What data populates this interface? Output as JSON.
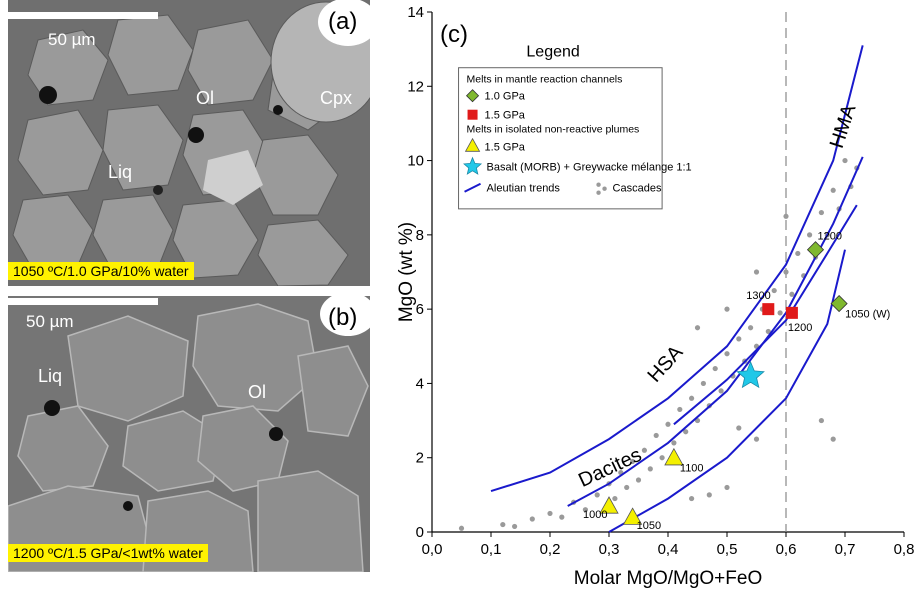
{
  "panel_a": {
    "letter": "(a)",
    "scale_label": "50 µm",
    "minerals": [
      "Ol",
      "Cpx",
      "Liq"
    ],
    "caption": "1050 ºC/1.0 GPa/10% water"
  },
  "panel_b": {
    "letter": "(b)",
    "scale_label": "50 µm",
    "minerals": [
      "Liq",
      "Ol"
    ],
    "caption": "1200 ºC/1.5 GPa/<1wt% water"
  },
  "colors": {
    "trend": "#1a1acc",
    "green": "#7fb82e",
    "red": "#e01a1a",
    "yellow": "#f4f000",
    "cyan": "#20c8e8",
    "gray": "#9a9a9a"
  },
  "chart_data": {
    "type": "scatter",
    "panel_label": "(c)",
    "xlabel": "Molar MgO/MgO+FeO",
    "ylabel": "MgO (wt %)",
    "xlim": [
      0.0,
      0.8
    ],
    "ylim": [
      0,
      14
    ],
    "xticks": [
      "0,0",
      "0,1",
      "0,2",
      "0,3",
      "0,4",
      "0,5",
      "0,6",
      "0,7",
      "0,8"
    ],
    "yticks": [
      "0",
      "2",
      "4",
      "6",
      "8",
      "10",
      "12",
      "14"
    ],
    "dashed_vline_x": 0.6,
    "field_labels": [
      "HMA",
      "HSA",
      "Dacites"
    ],
    "legend": {
      "title": "Legend",
      "group1": "Melts in mantle reaction channels",
      "item_green": "1.0 GPa",
      "item_red": "1.5 GPa",
      "group2": "Melts in isolated non-reactive plumes",
      "item_yellow": "1.5 GPa",
      "item_star": "Basalt (MORB) + Greywacke mélange 1:1",
      "item_line": "Aleutian trends",
      "item_gray": "Cascades"
    },
    "series": [
      {
        "name": "1.0 GPa",
        "marker": "diamond",
        "points": [
          [
            0.65,
            7.6,
            "1200"
          ],
          [
            0.69,
            6.15,
            "1050 (W)"
          ]
        ]
      },
      {
        "name": "1.5 GPa",
        "marker": "square",
        "points": [
          [
            0.57,
            6.0,
            "1300"
          ],
          [
            0.61,
            5.9,
            "1200"
          ]
        ]
      },
      {
        "name": "1.5 GPa",
        "marker": "triangle",
        "points": [
          [
            0.3,
            0.7,
            "1000"
          ],
          [
            0.34,
            0.4,
            "1050"
          ],
          [
            0.41,
            2.0,
            "1100"
          ]
        ]
      },
      {
        "name": "Basalt (MORB) + Greywacke mélange 1:1",
        "marker": "star",
        "points": [
          [
            0.54,
            4.2,
            ""
          ]
        ]
      }
    ],
    "aleutian_trends": [
      [
        [
          0.1,
          1.1
        ],
        [
          0.2,
          1.6
        ],
        [
          0.3,
          2.5
        ],
        [
          0.4,
          3.6
        ],
        [
          0.5,
          5.0
        ],
        [
          0.6,
          7.2
        ],
        [
          0.68,
          10.0
        ],
        [
          0.73,
          13.1
        ]
      ],
      [
        [
          0.23,
          0.7
        ],
        [
          0.3,
          1.3
        ],
        [
          0.4,
          2.4
        ],
        [
          0.5,
          3.8
        ],
        [
          0.6,
          5.9
        ],
        [
          0.68,
          8.3
        ],
        [
          0.73,
          10.1
        ]
      ],
      [
        [
          0.41,
          2.9
        ],
        [
          0.5,
          4.1
        ],
        [
          0.6,
          5.7
        ],
        [
          0.67,
          7.5
        ],
        [
          0.72,
          8.8
        ]
      ],
      [
        [
          0.3,
          0.0
        ],
        [
          0.4,
          0.9
        ],
        [
          0.5,
          2.0
        ],
        [
          0.6,
          3.6
        ],
        [
          0.67,
          5.6
        ],
        [
          0.7,
          7.6
        ]
      ]
    ],
    "cascades": {
      "description_points": [
        [
          0.05,
          0.1
        ],
        [
          0.12,
          0.2
        ],
        [
          0.14,
          0.15
        ],
        [
          0.17,
          0.35
        ],
        [
          0.2,
          0.5
        ],
        [
          0.22,
          0.4
        ],
        [
          0.24,
          0.8
        ],
        [
          0.26,
          0.6
        ],
        [
          0.28,
          1.0
        ],
        [
          0.3,
          1.3
        ],
        [
          0.31,
          0.9
        ],
        [
          0.32,
          1.6
        ],
        [
          0.33,
          1.2
        ],
        [
          0.34,
          1.9
        ],
        [
          0.35,
          1.4
        ],
        [
          0.36,
          2.2
        ],
        [
          0.37,
          1.7
        ],
        [
          0.38,
          2.6
        ],
        [
          0.39,
          2.0
        ],
        [
          0.4,
          2.9
        ],
        [
          0.41,
          2.4
        ],
        [
          0.42,
          3.3
        ],
        [
          0.43,
          2.7
        ],
        [
          0.44,
          3.6
        ],
        [
          0.45,
          3.0
        ],
        [
          0.46,
          4.0
        ],
        [
          0.47,
          3.4
        ],
        [
          0.48,
          4.4
        ],
        [
          0.49,
          3.8
        ],
        [
          0.5,
          4.8
        ],
        [
          0.51,
          4.2
        ],
        [
          0.52,
          5.2
        ],
        [
          0.53,
          4.6
        ],
        [
          0.54,
          5.5
        ],
        [
          0.55,
          5.0
        ],
        [
          0.56,
          6.0
        ],
        [
          0.57,
          5.4
        ],
        [
          0.58,
          6.5
        ],
        [
          0.59,
          5.9
        ],
        [
          0.6,
          7.0
        ],
        [
          0.61,
          6.4
        ],
        [
          0.62,
          7.5
        ],
        [
          0.63,
          6.9
        ],
        [
          0.64,
          8.0
        ],
        [
          0.65,
          7.4
        ],
        [
          0.66,
          8.6
        ],
        [
          0.67,
          8.0
        ],
        [
          0.68,
          9.2
        ],
        [
          0.69,
          8.7
        ],
        [
          0.7,
          10.0
        ],
        [
          0.71,
          9.3
        ],
        [
          0.72,
          9.8
        ],
        [
          0.68,
          2.5
        ],
        [
          0.66,
          3.0
        ],
        [
          0.52,
          2.8
        ],
        [
          0.47,
          1.0
        ],
        [
          0.5,
          1.2
        ],
        [
          0.55,
          2.5
        ],
        [
          0.45,
          5.5
        ],
        [
          0.5,
          6.0
        ],
        [
          0.55,
          7.0
        ],
        [
          0.6,
          8.5
        ],
        [
          0.44,
          0.9
        ]
      ]
    }
  }
}
